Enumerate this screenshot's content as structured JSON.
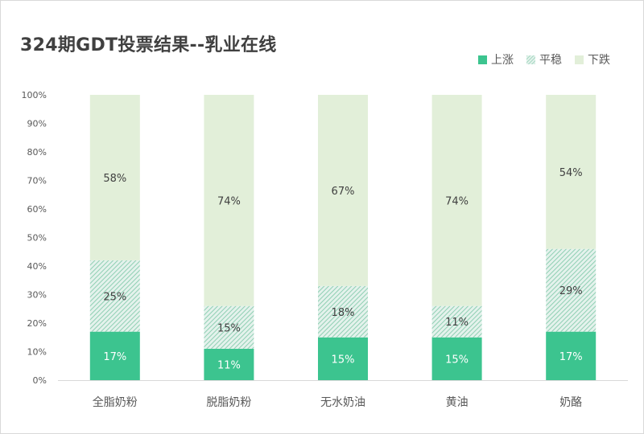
{
  "chart_data": {
    "type": "bar",
    "stacked": true,
    "title": "324期GDT投票结果--乳业在线",
    "categories": [
      "全脂奶粉",
      "脱脂奶粉",
      "无水奶油",
      "黄油",
      "奶酪"
    ],
    "series": [
      {
        "name": "上涨",
        "values": [
          17,
          11,
          15,
          15,
          17
        ],
        "color": "#3cc48f"
      },
      {
        "name": "平稳",
        "values": [
          25,
          15,
          18,
          11,
          29
        ],
        "color": "#a9d9c4"
      },
      {
        "name": "下跌",
        "values": [
          58,
          74,
          67,
          74,
          54
        ],
        "color": "#e2efd9"
      }
    ],
    "y_ticks": [
      "0%",
      "10%",
      "20%",
      "30%",
      "40%",
      "50%",
      "60%",
      "70%",
      "80%",
      "90%",
      "100%"
    ],
    "ylim": [
      0,
      100
    ],
    "legend_position": "top-right",
    "grid": false
  }
}
